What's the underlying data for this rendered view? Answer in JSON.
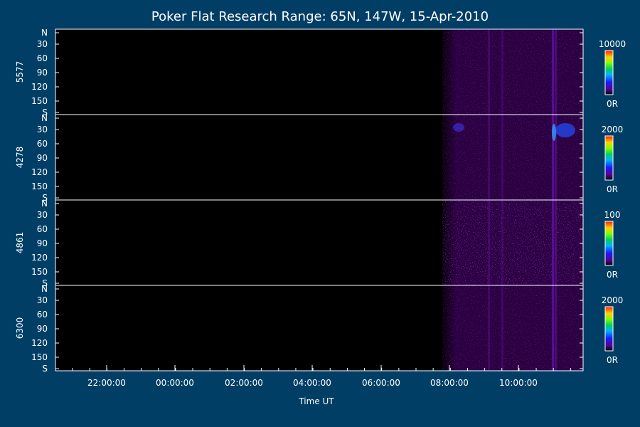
{
  "title": "Poker Flat Research Range: 65N, 147W, 15-Apr-2010",
  "colors": {
    "background": "#003e66",
    "plot": "#000000",
    "axis": "#ffffff"
  },
  "chart_data": {
    "type": "heatmap",
    "title": "Poker Flat Research Range: 65N, 147W, 15-Apr-2010",
    "xlabel": "Time UT",
    "x_ticks": [
      "22:00:00",
      "00:00:00",
      "02:00:00",
      "04:00:00",
      "06:00:00",
      "08:00:00",
      "10:00:00"
    ],
    "y_ticks": [
      "N",
      "30",
      "60",
      "90",
      "120",
      "150",
      "S"
    ],
    "panels": [
      {
        "ylabel": "5577",
        "cbar_max": "10000",
        "cbar_min": "0R"
      },
      {
        "ylabel": "4278",
        "cbar_max": "2000",
        "cbar_min": "0R"
      },
      {
        "ylabel": "4861",
        "cbar_max": "100",
        "cbar_min": "0R"
      },
      {
        "ylabel": "6300",
        "cbar_max": "2000",
        "cbar_min": "0R"
      }
    ]
  }
}
